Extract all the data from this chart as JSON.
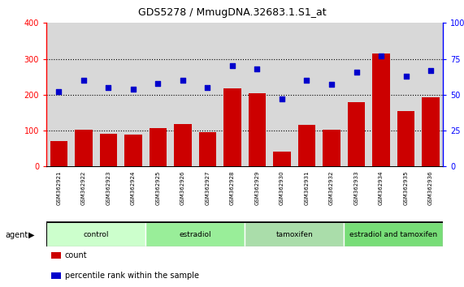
{
  "title": "GDS5278 / MmugDNA.32683.1.S1_at",
  "samples": [
    "GSM362921",
    "GSM362922",
    "GSM362923",
    "GSM362924",
    "GSM362925",
    "GSM362926",
    "GSM362927",
    "GSM362928",
    "GSM362929",
    "GSM362930",
    "GSM362931",
    "GSM362932",
    "GSM362933",
    "GSM362934",
    "GSM362935",
    "GSM362936"
  ],
  "counts": [
    70,
    103,
    92,
    88,
    108,
    118,
    95,
    218,
    205,
    42,
    115,
    102,
    180,
    315,
    155,
    192
  ],
  "percentiles": [
    52,
    60,
    55,
    54,
    58,
    60,
    55,
    70,
    68,
    47,
    60,
    57,
    66,
    77,
    63,
    67
  ],
  "bar_color": "#cc0000",
  "dot_color": "#0000cc",
  "ylim_left": [
    0,
    400
  ],
  "ylim_right": [
    0,
    100
  ],
  "yticks_left": [
    0,
    100,
    200,
    300,
    400
  ],
  "yticks_right": [
    0,
    25,
    50,
    75,
    100
  ],
  "groups": [
    {
      "label": "control",
      "start": 0,
      "end": 4,
      "color": "#ccffcc"
    },
    {
      "label": "estradiol",
      "start": 4,
      "end": 8,
      "color": "#99ee99"
    },
    {
      "label": "tamoxifen",
      "start": 8,
      "end": 12,
      "color": "#aaddaa"
    },
    {
      "label": "estradiol and tamoxifen",
      "start": 12,
      "end": 16,
      "color": "#77dd77"
    }
  ],
  "agent_label": "agent",
  "legend_count_label": "count",
  "legend_percentile_label": "percentile rank within the sample",
  "plot_bg_color": "#d8d8d8",
  "sample_box_color": "#c8c8c8",
  "grid_color": "#000000"
}
